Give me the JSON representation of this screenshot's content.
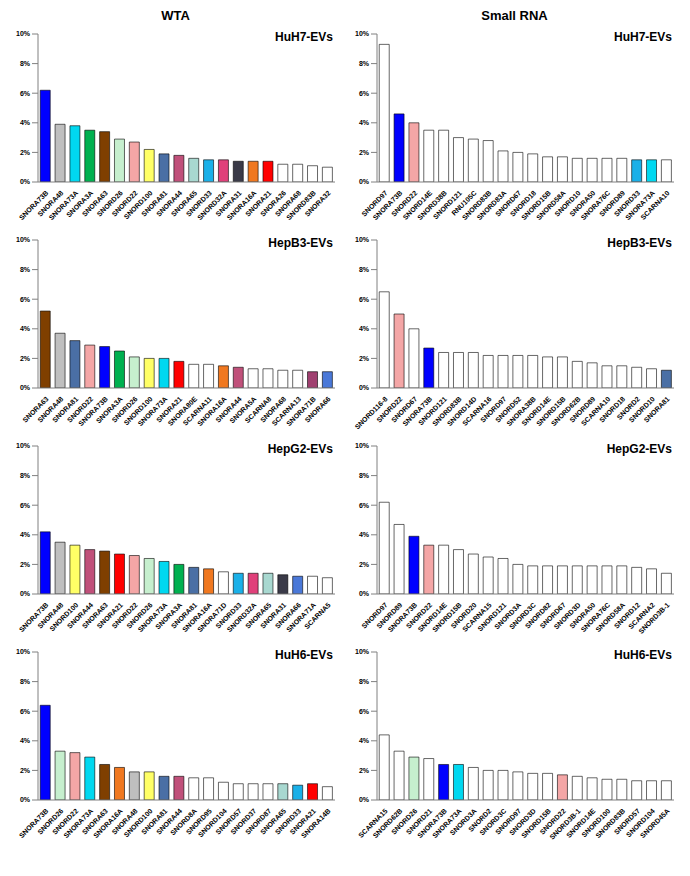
{
  "column_titles": [
    "WTA",
    "Small RNA"
  ],
  "chart_data": [
    {
      "type": "bar",
      "title": "HuH7-EVs",
      "ylim": [
        0,
        10
      ],
      "yticks": [
        {
          "value": 0,
          "label": "0%"
        },
        {
          "value": 2,
          "label": "2%"
        },
        {
          "value": 4,
          "label": "4%"
        },
        {
          "value": 6,
          "label": "6%"
        },
        {
          "value": 8,
          "label": "8%"
        },
        {
          "value": 10,
          "label": "10%"
        }
      ],
      "grid": false,
      "categories": [
        "SNORA73B",
        "SNORA48",
        "SNORA73A",
        "SNORA3A",
        "SNORA63",
        "SNORD26",
        "SNORD22",
        "SNORD100",
        "SNORA81",
        "SNORA44",
        "SNORA65",
        "SNORD33",
        "SNORD32A",
        "SNORA31",
        "SNORA16A",
        "SNORA21",
        "SNORA26",
        "SNORA68",
        "SNORD83B",
        "SNORA32"
      ],
      "values": [
        6.2,
        3.9,
        3.8,
        3.5,
        3.4,
        2.9,
        2.7,
        2.2,
        1.9,
        1.8,
        1.6,
        1.5,
        1.5,
        1.4,
        1.4,
        1.4,
        1.2,
        1.2,
        1.1,
        1.0
      ],
      "colors": [
        "#0000ff",
        "#bfbfbf",
        "#00d8f0",
        "#00b050",
        "#7f3f00",
        "#c6efce",
        "#f4a6a6",
        "#ffff66",
        "#4a6fa5",
        "#c0507a",
        "#a8d8d0",
        "#1ab0e8",
        "#e0407a",
        "#3a3a48",
        "#f07820",
        "#ff0000",
        "#ffffff",
        "#ffffff",
        "#ffffff",
        "#ffffff"
      ]
    },
    {
      "type": "bar",
      "title": "HuH7-EVs",
      "ylim": [
        0,
        10
      ],
      "yticks": [
        {
          "value": 0,
          "label": "0%"
        },
        {
          "value": 2,
          "label": "2%"
        },
        {
          "value": 4,
          "label": "4%"
        },
        {
          "value": 6,
          "label": "6%"
        },
        {
          "value": 8,
          "label": "8%"
        },
        {
          "value": 10,
          "label": "10%"
        }
      ],
      "grid": false,
      "categories": [
        "SNORD97",
        "SNORA73B",
        "SNORD22",
        "SNORD14E",
        "SNORD38B",
        "SNORD121",
        "RNU105C",
        "SNORD83B",
        "SNORD83A",
        "SNORD67",
        "SNORD18",
        "SNORD15B",
        "SNORD58A",
        "SNORD10",
        "SNORA50",
        "SNORA76C",
        "SNORD89",
        "SNORD33",
        "SNORA73A",
        "SCARNA10"
      ],
      "values": [
        9.3,
        4.6,
        4.0,
        3.5,
        3.5,
        3.0,
        2.9,
        2.8,
        2.1,
        2.0,
        1.9,
        1.7,
        1.7,
        1.6,
        1.6,
        1.6,
        1.6,
        1.5,
        1.5,
        1.5
      ],
      "colors": [
        "#ffffff",
        "#0000ff",
        "#f4a6a6",
        "#ffffff",
        "#ffffff",
        "#ffffff",
        "#ffffff",
        "#ffffff",
        "#ffffff",
        "#ffffff",
        "#ffffff",
        "#ffffff",
        "#ffffff",
        "#ffffff",
        "#ffffff",
        "#ffffff",
        "#ffffff",
        "#1ab0e8",
        "#00d8f0",
        "#ffffff"
      ]
    },
    {
      "type": "bar",
      "title": "HepB3-EVs",
      "ylim": [
        0,
        10
      ],
      "yticks": [
        {
          "value": 0,
          "label": "0%"
        },
        {
          "value": 2,
          "label": "2%"
        },
        {
          "value": 4,
          "label": "4%"
        },
        {
          "value": 6,
          "label": "6%"
        },
        {
          "value": 8,
          "label": "8%"
        },
        {
          "value": 10,
          "label": "10%"
        }
      ],
      "grid": false,
      "categories": [
        "SNORA63",
        "SNORA48",
        "SNORA81",
        "SNORD22",
        "SNORA73B",
        "SNORA3A",
        "SNORD26",
        "SNORD100",
        "SNORA73A",
        "SNORA21",
        "SNORA80E",
        "SCARNA11",
        "SNORA16A",
        "SNORA44",
        "SNORA5A",
        "SCARNA8",
        "SNORA68",
        "SCARNA13",
        "SNORA71B",
        "SNORA66"
      ],
      "values": [
        5.2,
        3.7,
        3.2,
        2.9,
        2.8,
        2.5,
        2.1,
        2.0,
        2.0,
        1.8,
        1.6,
        1.6,
        1.5,
        1.4,
        1.3,
        1.3,
        1.2,
        1.2,
        1.1,
        1.1
      ],
      "colors": [
        "#7f3f00",
        "#bfbfbf",
        "#4a6fa5",
        "#f4a6a6",
        "#0000ff",
        "#00b050",
        "#c6efce",
        "#ffff66",
        "#00d8f0",
        "#ff0000",
        "#ffffff",
        "#ffffff",
        "#f07820",
        "#c0507a",
        "#ffffff",
        "#ffffff",
        "#ffffff",
        "#ffffff",
        "#a04070",
        "#4a78d8"
      ]
    },
    {
      "type": "bar",
      "title": "HepB3-EVs",
      "ylim": [
        0,
        10
      ],
      "yticks": [
        {
          "value": 0,
          "label": "0%"
        },
        {
          "value": 2,
          "label": "2%"
        },
        {
          "value": 4,
          "label": "4%"
        },
        {
          "value": 6,
          "label": "6%"
        },
        {
          "value": 8,
          "label": "8%"
        },
        {
          "value": 10,
          "label": "10%"
        }
      ],
      "grid": false,
      "categories": [
        "SNORD116-8",
        "SNORD22",
        "SNORD67",
        "SNORA73B",
        "SNORD121",
        "SNORD83B",
        "SNORD14D",
        "SCARNA16",
        "SNORD97",
        "SNORD52",
        "SNORA38B",
        "SNORD14E",
        "SNORD15B",
        "SNORD62B",
        "SNORD89",
        "SCARNA10",
        "SNORD18",
        "SNORD2",
        "SNORD10",
        "SNORA81"
      ],
      "values": [
        6.5,
        5.0,
        4.0,
        2.7,
        2.4,
        2.4,
        2.4,
        2.2,
        2.2,
        2.2,
        2.2,
        2.1,
        2.1,
        1.8,
        1.7,
        1.5,
        1.5,
        1.4,
        1.3,
        1.2
      ],
      "colors": [
        "#ffffff",
        "#f4a6a6",
        "#ffffff",
        "#0000ff",
        "#ffffff",
        "#ffffff",
        "#ffffff",
        "#ffffff",
        "#ffffff",
        "#ffffff",
        "#ffffff",
        "#ffffff",
        "#ffffff",
        "#ffffff",
        "#ffffff",
        "#ffffff",
        "#ffffff",
        "#ffffff",
        "#ffffff",
        "#4a6fa5"
      ]
    },
    {
      "type": "bar",
      "title": "HepG2-EVs",
      "ylim": [
        0,
        10
      ],
      "yticks": [
        {
          "value": 0,
          "label": "0%"
        },
        {
          "value": 2,
          "label": "2%"
        },
        {
          "value": 4,
          "label": "4%"
        },
        {
          "value": 6,
          "label": "6%"
        },
        {
          "value": 8,
          "label": "8%"
        },
        {
          "value": 10,
          "label": "10%"
        }
      ],
      "grid": false,
      "categories": [
        "SNORA73B",
        "SNORA48",
        "SNORD100",
        "SNORA44",
        "SNORA63",
        "SNORA21",
        "SNORD22",
        "SNORD26",
        "SNORA73A",
        "SNORA3A",
        "SNORA81",
        "SNORA16A",
        "SNORA71D",
        "SNORD33",
        "SNORD32A",
        "SNORA65",
        "SNORA31",
        "SNORA66",
        "SNORA71A",
        "SCARNA5"
      ],
      "values": [
        4.2,
        3.5,
        3.3,
        3.0,
        2.9,
        2.7,
        2.6,
        2.4,
        2.2,
        2.0,
        1.8,
        1.7,
        1.5,
        1.4,
        1.4,
        1.4,
        1.3,
        1.2,
        1.2,
        1.1
      ],
      "colors": [
        "#0000ff",
        "#bfbfbf",
        "#ffff66",
        "#c0507a",
        "#7f3f00",
        "#ff0000",
        "#f4a6a6",
        "#c6efce",
        "#00d8f0",
        "#00b050",
        "#4a6fa5",
        "#f07820",
        "#ffffff",
        "#1ab0e8",
        "#e0407a",
        "#a8d8d0",
        "#3a3a48",
        "#4a78d8",
        "#ffffff",
        "#ffffff"
      ]
    },
    {
      "type": "bar",
      "title": "HepG2-EVs",
      "ylim": [
        0,
        10
      ],
      "yticks": [
        {
          "value": 0,
          "label": "0%"
        },
        {
          "value": 2,
          "label": "2%"
        },
        {
          "value": 4,
          "label": "4%"
        },
        {
          "value": 6,
          "label": "6%"
        },
        {
          "value": 8,
          "label": "8%"
        },
        {
          "value": 10,
          "label": "10%"
        }
      ],
      "grid": false,
      "categories": [
        "SNORD97",
        "SNORD89",
        "SNORA73B",
        "SNORD22",
        "SNORD14E",
        "SNORD15B",
        "SNORD20",
        "SCARNA15",
        "SNORD121",
        "SNORD3A",
        "SNORD3C",
        "SNORD82",
        "SNORD67",
        "SNORD3D",
        "SNORA50",
        "SNORA76C",
        "SNORD58A",
        "SNORD12",
        "SCARNA2",
        "SNORD3B-1"
      ],
      "values": [
        6.2,
        4.7,
        3.9,
        3.3,
        3.3,
        3.0,
        2.7,
        2.5,
        2.4,
        2.0,
        1.9,
        1.9,
        1.9,
        1.9,
        1.9,
        1.9,
        1.9,
        1.8,
        1.7,
        1.4
      ],
      "colors": [
        "#ffffff",
        "#ffffff",
        "#0000ff",
        "#f4a6a6",
        "#ffffff",
        "#ffffff",
        "#ffffff",
        "#ffffff",
        "#ffffff",
        "#ffffff",
        "#ffffff",
        "#ffffff",
        "#ffffff",
        "#ffffff",
        "#ffffff",
        "#ffffff",
        "#ffffff",
        "#ffffff",
        "#ffffff",
        "#ffffff"
      ]
    },
    {
      "type": "bar",
      "title": "HuH6-EVs",
      "ylim": [
        0,
        10
      ],
      "yticks": [
        {
          "value": 0,
          "label": "0%"
        },
        {
          "value": 2,
          "label": "2%"
        },
        {
          "value": 4,
          "label": "4%"
        },
        {
          "value": 6,
          "label": "6%"
        },
        {
          "value": 8,
          "label": "8%"
        },
        {
          "value": 10,
          "label": "10%"
        }
      ],
      "grid": false,
      "categories": [
        "SNORA73B",
        "SNORD26",
        "SNORD22",
        "SNORA73A",
        "SNORA63",
        "SNORA16A",
        "SNORA48",
        "SNORD100",
        "SNORA81",
        "SNORA44",
        "SNORD8A",
        "SNORD95",
        "SNORD104",
        "SNORD57",
        "SNORD37",
        "SNORD87",
        "SNORA65",
        "SNORD33",
        "SNORA21",
        "SNORA14B"
      ],
      "values": [
        6.4,
        3.3,
        3.2,
        2.9,
        2.4,
        2.2,
        1.9,
        1.9,
        1.6,
        1.6,
        1.5,
        1.5,
        1.2,
        1.1,
        1.1,
        1.1,
        1.1,
        1.0,
        1.1,
        0.9
      ],
      "colors": [
        "#0000ff",
        "#c6efce",
        "#f4a6a6",
        "#00d8f0",
        "#7f3f00",
        "#f07820",
        "#bfbfbf",
        "#ffff66",
        "#4a6fa5",
        "#c0507a",
        "#ffffff",
        "#ffffff",
        "#ffffff",
        "#ffffff",
        "#ffffff",
        "#ffffff",
        "#a8d8d0",
        "#1ab0e8",
        "#ff0000",
        "#ffffff"
      ]
    },
    {
      "type": "bar",
      "title": "HuH6-EVs",
      "ylim": [
        0,
        10
      ],
      "yticks": [
        {
          "value": 0,
          "label": "0%"
        },
        {
          "value": 2,
          "label": "2%"
        },
        {
          "value": 4,
          "label": "4%"
        },
        {
          "value": 6,
          "label": "6%"
        },
        {
          "value": 8,
          "label": "8%"
        },
        {
          "value": 10,
          "label": "10%"
        }
      ],
      "grid": false,
      "categories": [
        "SCARNA15",
        "SNORD62B",
        "SNORD26",
        "SNORD21",
        "SNORA73B",
        "SNORA73A",
        "SNORD3A",
        "SNORD2",
        "SNORD3C",
        "SNORD97",
        "SNORD3D",
        "SNORD15B",
        "SNORD22",
        "SNORD3B-1",
        "SNORD14E",
        "SNORD100",
        "SNORD83B",
        "SNORD57",
        "SNORD104",
        "SNORD45A"
      ],
      "values": [
        4.4,
        3.3,
        2.9,
        2.8,
        2.4,
        2.4,
        2.2,
        2.0,
        2.0,
        1.9,
        1.8,
        1.8,
        1.7,
        1.6,
        1.5,
        1.4,
        1.4,
        1.3,
        1.3,
        1.3
      ],
      "colors": [
        "#ffffff",
        "#ffffff",
        "#c6efce",
        "#ffffff",
        "#0000ff",
        "#00d8f0",
        "#ffffff",
        "#ffffff",
        "#ffffff",
        "#ffffff",
        "#ffffff",
        "#ffffff",
        "#f4a6a6",
        "#ffffff",
        "#ffffff",
        "#ffffff",
        "#ffffff",
        "#ffffff",
        "#ffffff",
        "#ffffff"
      ]
    }
  ]
}
